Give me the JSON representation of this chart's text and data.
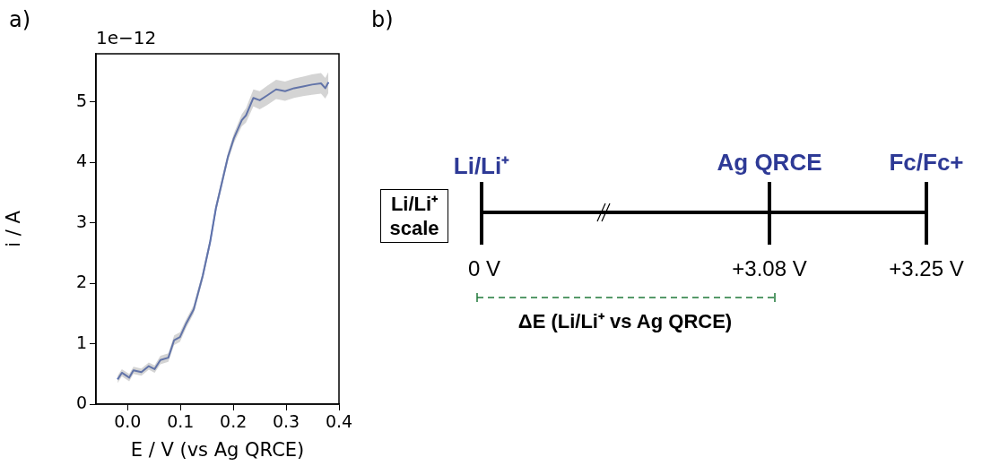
{
  "chart_data": [
    {
      "type": "line",
      "title": "a)",
      "xlabel": "E / V (vs Ag QRCE)",
      "ylabel": "i / A",
      "annotations": [
        "1e−12"
      ],
      "x": [
        -0.019,
        -0.011,
        0.003,
        0.011,
        0.026,
        0.04,
        0.051,
        0.062,
        0.077,
        0.088,
        0.099,
        0.111,
        0.125,
        0.142,
        0.156,
        0.167,
        0.179,
        0.19,
        0.201,
        0.216,
        0.224,
        0.238,
        0.25,
        0.264,
        0.281,
        0.298,
        0.315,
        0.332,
        0.349,
        0.366,
        0.374,
        0.38
      ],
      "series": [
        {
          "color": "#3050b0",
          "values": [
            0.41,
            0.52,
            0.44,
            0.56,
            0.53,
            0.63,
            0.58,
            0.73,
            0.77,
            1.06,
            1.11,
            1.34,
            1.57,
            2.12,
            2.68,
            3.24,
            3.69,
            4.1,
            4.4,
            4.7,
            4.78,
            5.07,
            5.03,
            5.11,
            5.21,
            5.18,
            5.23,
            5.26,
            5.29,
            5.31,
            5.23,
            5.33
          ],
          "lower": [
            0.35,
            0.46,
            0.38,
            0.5,
            0.47,
            0.57,
            0.52,
            0.66,
            0.7,
            0.98,
            1.03,
            1.27,
            1.5,
            2.05,
            2.61,
            3.17,
            3.62,
            4.03,
            4.32,
            4.6,
            4.66,
            4.93,
            4.88,
            4.95,
            5.05,
            5.02,
            5.07,
            5.1,
            5.12,
            5.14,
            5.06,
            5.15
          ],
          "upper": [
            0.47,
            0.58,
            0.5,
            0.62,
            0.59,
            0.69,
            0.64,
            0.8,
            0.84,
            1.14,
            1.19,
            1.41,
            1.64,
            2.19,
            2.75,
            3.31,
            3.76,
            4.17,
            4.48,
            4.8,
            4.9,
            5.21,
            5.18,
            5.27,
            5.37,
            5.34,
            5.39,
            5.42,
            5.46,
            5.48,
            5.4,
            5.5
          ]
        }
      ],
      "xlim": [
        -0.06,
        0.4
      ],
      "ylim": [
        0,
        5.8
      ],
      "xticks": [
        {
          "value": 0,
          "label": "0.0"
        },
        {
          "value": 0.1,
          "label": "0.1"
        },
        {
          "value": 0.2,
          "label": "0.2"
        },
        {
          "value": 0.3,
          "label": "0.3"
        },
        {
          "value": 0.4,
          "label": "0.4"
        }
      ],
      "yticks": [
        0,
        1,
        2,
        3,
        4,
        5
      ],
      "grid": false,
      "legend": false,
      "marker": "none",
      "line_style": "solid"
    },
    {
      "type": "other",
      "title": "b)",
      "annotations": [
        "Li/Li⁺",
        "Ag QRCE",
        "Fc/Fc+",
        "Li/Li⁺ scale",
        "0 V",
        "+3.08 V",
        "+3.25 V",
        "ΔE (Li/Li⁺ vs Ag QRCE)"
      ]
    }
  ]
}
